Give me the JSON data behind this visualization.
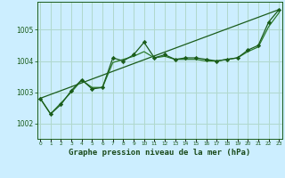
{
  "title": "Graphe pression niveau de la mer (hPa)",
  "bg_color": "#cceeff",
  "grid_color": "#b0d8cc",
  "line_color_dark": "#1a5c1a",
  "line_color_mid": "#2a7a2a",
  "xlabel_color": "#1a4a1a",
  "x_ticks": [
    0,
    1,
    2,
    3,
    4,
    5,
    6,
    7,
    8,
    9,
    10,
    11,
    12,
    13,
    14,
    15,
    16,
    17,
    18,
    19,
    20,
    21,
    22,
    23
  ],
  "y_ticks": [
    1002,
    1003,
    1004,
    1005
  ],
  "ylim": [
    1001.5,
    1005.9
  ],
  "xlim": [
    -0.3,
    23.3
  ],
  "series_jagged": [
    1002.8,
    1002.3,
    1002.6,
    1003.05,
    1003.4,
    1003.1,
    1003.15,
    1004.1,
    1004.0,
    1004.2,
    1004.6,
    1004.1,
    1004.2,
    1004.05,
    1004.1,
    1004.1,
    1004.05,
    1004.0,
    1004.05,
    1004.1,
    1004.35,
    1004.5,
    1005.25,
    1005.65
  ],
  "series_smooth": [
    1002.8,
    1002.3,
    1002.65,
    1003.0,
    1003.38,
    1003.15,
    1003.15,
    1003.95,
    1004.05,
    1004.15,
    1004.3,
    1004.1,
    1004.15,
    1004.05,
    1004.05,
    1004.05,
    1004.0,
    1004.0,
    1004.05,
    1004.1,
    1004.3,
    1004.45,
    1005.1,
    1005.55
  ],
  "trend_y": [
    1002.8,
    1005.65
  ]
}
